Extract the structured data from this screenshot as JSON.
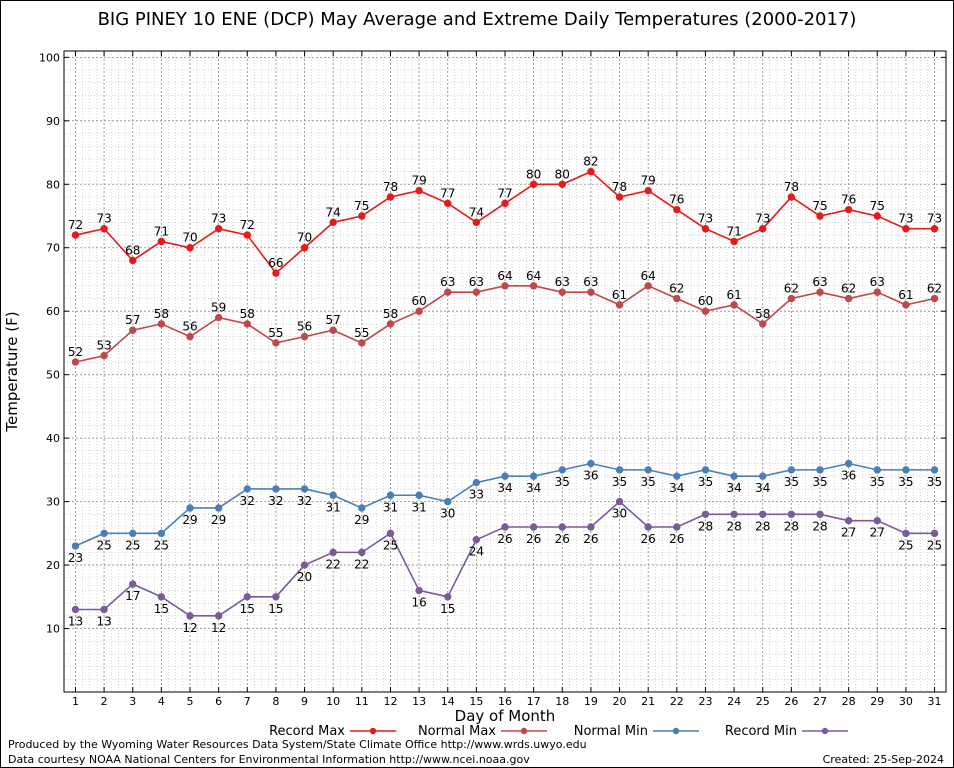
{
  "chart_data": {
    "type": "line",
    "title": "BIG PINEY 10 ENE (DCP) May Average and Extreme Daily Temperatures (2000-2017)",
    "xlabel": "Day of Month",
    "ylabel": "Temperature (F)",
    "xlim": [
      0.6,
      31.4
    ],
    "ylim": [
      0,
      101
    ],
    "yticks": [
      10,
      20,
      30,
      40,
      50,
      60,
      70,
      80,
      90,
      100
    ],
    "x": [
      1,
      2,
      3,
      4,
      5,
      6,
      7,
      8,
      9,
      10,
      11,
      12,
      13,
      14,
      15,
      16,
      17,
      18,
      19,
      20,
      21,
      22,
      23,
      24,
      25,
      26,
      27,
      28,
      29,
      30,
      31
    ],
    "grid": true,
    "legend_position": "bottom",
    "series": [
      {
        "name": "Record Max",
        "color": "#e8191a",
        "label_pos": "above",
        "values": [
          72,
          73,
          68,
          71,
          70,
          73,
          72,
          66,
          70,
          74,
          75,
          78,
          79,
          77,
          74,
          77,
          80,
          80,
          82,
          78,
          79,
          76,
          73,
          71,
          73,
          78,
          75,
          76,
          75,
          73,
          73
        ]
      },
      {
        "name": "Normal Max",
        "color": "#c0474b",
        "label_pos": "above",
        "values": [
          52,
          53,
          57,
          58,
          56,
          59,
          58,
          55,
          56,
          57,
          55,
          58,
          60,
          63,
          63,
          64,
          64,
          63,
          63,
          61,
          64,
          62,
          60,
          61,
          58,
          62,
          63,
          62,
          63,
          61,
          62
        ]
      },
      {
        "name": "Normal Min",
        "color": "#4a7fb6",
        "label_pos": "below",
        "values": [
          23,
          25,
          25,
          25,
          29,
          29,
          32,
          32,
          32,
          31,
          29,
          31,
          31,
          30,
          33,
          34,
          34,
          35,
          36,
          35,
          35,
          34,
          35,
          34,
          34,
          35,
          35,
          36,
          35,
          35,
          35
        ]
      },
      {
        "name": "Record Min",
        "color": "#7b5a99",
        "label_pos": "below",
        "values": [
          13,
          13,
          17,
          15,
          12,
          12,
          15,
          15,
          20,
          22,
          22,
          25,
          16,
          15,
          24,
          26,
          26,
          26,
          26,
          30,
          26,
          26,
          28,
          28,
          28,
          28,
          28,
          27,
          27,
          25,
          25
        ]
      }
    ]
  },
  "footer": {
    "produced_by": "Produced by the Wyoming Water Resources Data System/State Climate Office http://www.wrds.uwyo.edu",
    "courtesy": "Data courtesy NOAA National Centers for Environmental Information http://www.ncei.noaa.gov",
    "created": "Created:  25-Sep-2024"
  }
}
